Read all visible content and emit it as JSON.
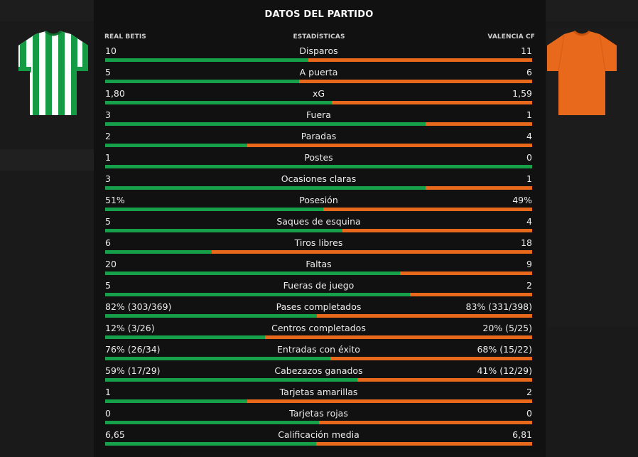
{
  "title": "DATOS DEL PARTIDO",
  "headers": {
    "home": "REAL BETIS",
    "middle": "ESTADÍSTICAS",
    "away": "VALENCIA CF"
  },
  "colors": {
    "home": "#16a04a",
    "away": "#e8681c"
  },
  "icons": {
    "home_kit": "green-white-striped-shirt-icon",
    "away_kit": "orange-shirt-icon"
  },
  "stats": [
    {
      "label": "Disparos",
      "home": "10",
      "away": "11",
      "home_share": 0.476
    },
    {
      "label": "A puerta",
      "home": "5",
      "away": "6",
      "home_share": 0.455
    },
    {
      "label": "xG",
      "home": "1,80",
      "away": "1,59",
      "home_share": 0.531
    },
    {
      "label": "Fuera",
      "home": "3",
      "away": "1",
      "home_share": 0.75
    },
    {
      "label": "Paradas",
      "home": "2",
      "away": "4",
      "home_share": 0.333
    },
    {
      "label": "Postes",
      "home": "1",
      "away": "0",
      "home_share": 1.0
    },
    {
      "label": "Ocasiones claras",
      "home": "3",
      "away": "1",
      "home_share": 0.75
    },
    {
      "label": "Posesión",
      "home": "51%",
      "away": "49%",
      "home_share": 0.51
    },
    {
      "label": "Saques de esquina",
      "home": "5",
      "away": "4",
      "home_share": 0.556
    },
    {
      "label": "Tiros libres",
      "home": "6",
      "away": "18",
      "home_share": 0.25
    },
    {
      "label": "Faltas",
      "home": "20",
      "away": "9",
      "home_share": 0.69
    },
    {
      "label": "Fueras de juego",
      "home": "5",
      "away": "2",
      "home_share": 0.714
    },
    {
      "label": "Pases completados",
      "home": "82% (303/369)",
      "away": "83% (331/398)",
      "home_share": 0.496
    },
    {
      "label": "Centros completados",
      "home": "12% (3/26)",
      "away": "20% (5/25)",
      "home_share": 0.375
    },
    {
      "label": "Entradas con éxito",
      "home": "76% (26/34)",
      "away": "68% (15/22)",
      "home_share": 0.528
    },
    {
      "label": "Cabezazos ganados",
      "home": "59% (17/29)",
      "away": "41% (12/29)",
      "home_share": 0.59
    },
    {
      "label": "Tarjetas amarillas",
      "home": "1",
      "away": "2",
      "home_share": 0.333
    },
    {
      "label": "Tarjetas rojas",
      "home": "0",
      "away": "0",
      "home_share": 0.5
    },
    {
      "label": "Calificación media",
      "home": "6,65",
      "away": "6,81",
      "home_share": 0.494
    }
  ]
}
